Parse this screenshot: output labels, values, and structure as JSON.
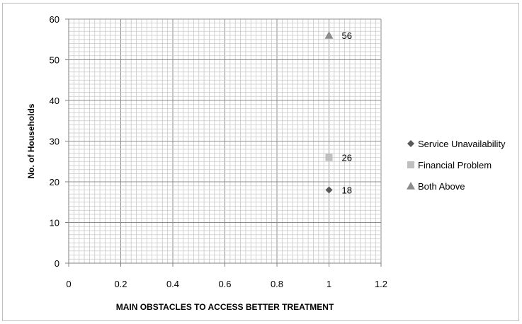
{
  "chart_data": {
    "type": "scatter",
    "title": "",
    "xlabel": "MAIN OBSTACLES TO ACCESS BETTER TREATMENT",
    "ylabel": "No. of Households",
    "xlim": [
      0,
      1.2
    ],
    "ylim": [
      0,
      60
    ],
    "x_ticks": [
      "0",
      "0.2",
      "0.4",
      "0.6",
      "0.8",
      "1",
      "1.2"
    ],
    "y_ticks": [
      "0",
      "10",
      "20",
      "30",
      "40",
      "50",
      "60"
    ],
    "grid": true,
    "legend_position": "right",
    "series": [
      {
        "name": "Service Unavailability",
        "marker": "diamond",
        "color": "#595959",
        "points": [
          {
            "x": 1,
            "y": 18,
            "label": "18"
          }
        ]
      },
      {
        "name": "Financial Problem",
        "marker": "square",
        "color": "#bfbfbf",
        "points": [
          {
            "x": 1,
            "y": 26,
            "label": "26"
          }
        ]
      },
      {
        "name": "Both Above",
        "marker": "triangle",
        "color": "#8c8c8c",
        "points": [
          {
            "x": 1,
            "y": 56,
            "label": "56"
          }
        ]
      }
    ]
  }
}
